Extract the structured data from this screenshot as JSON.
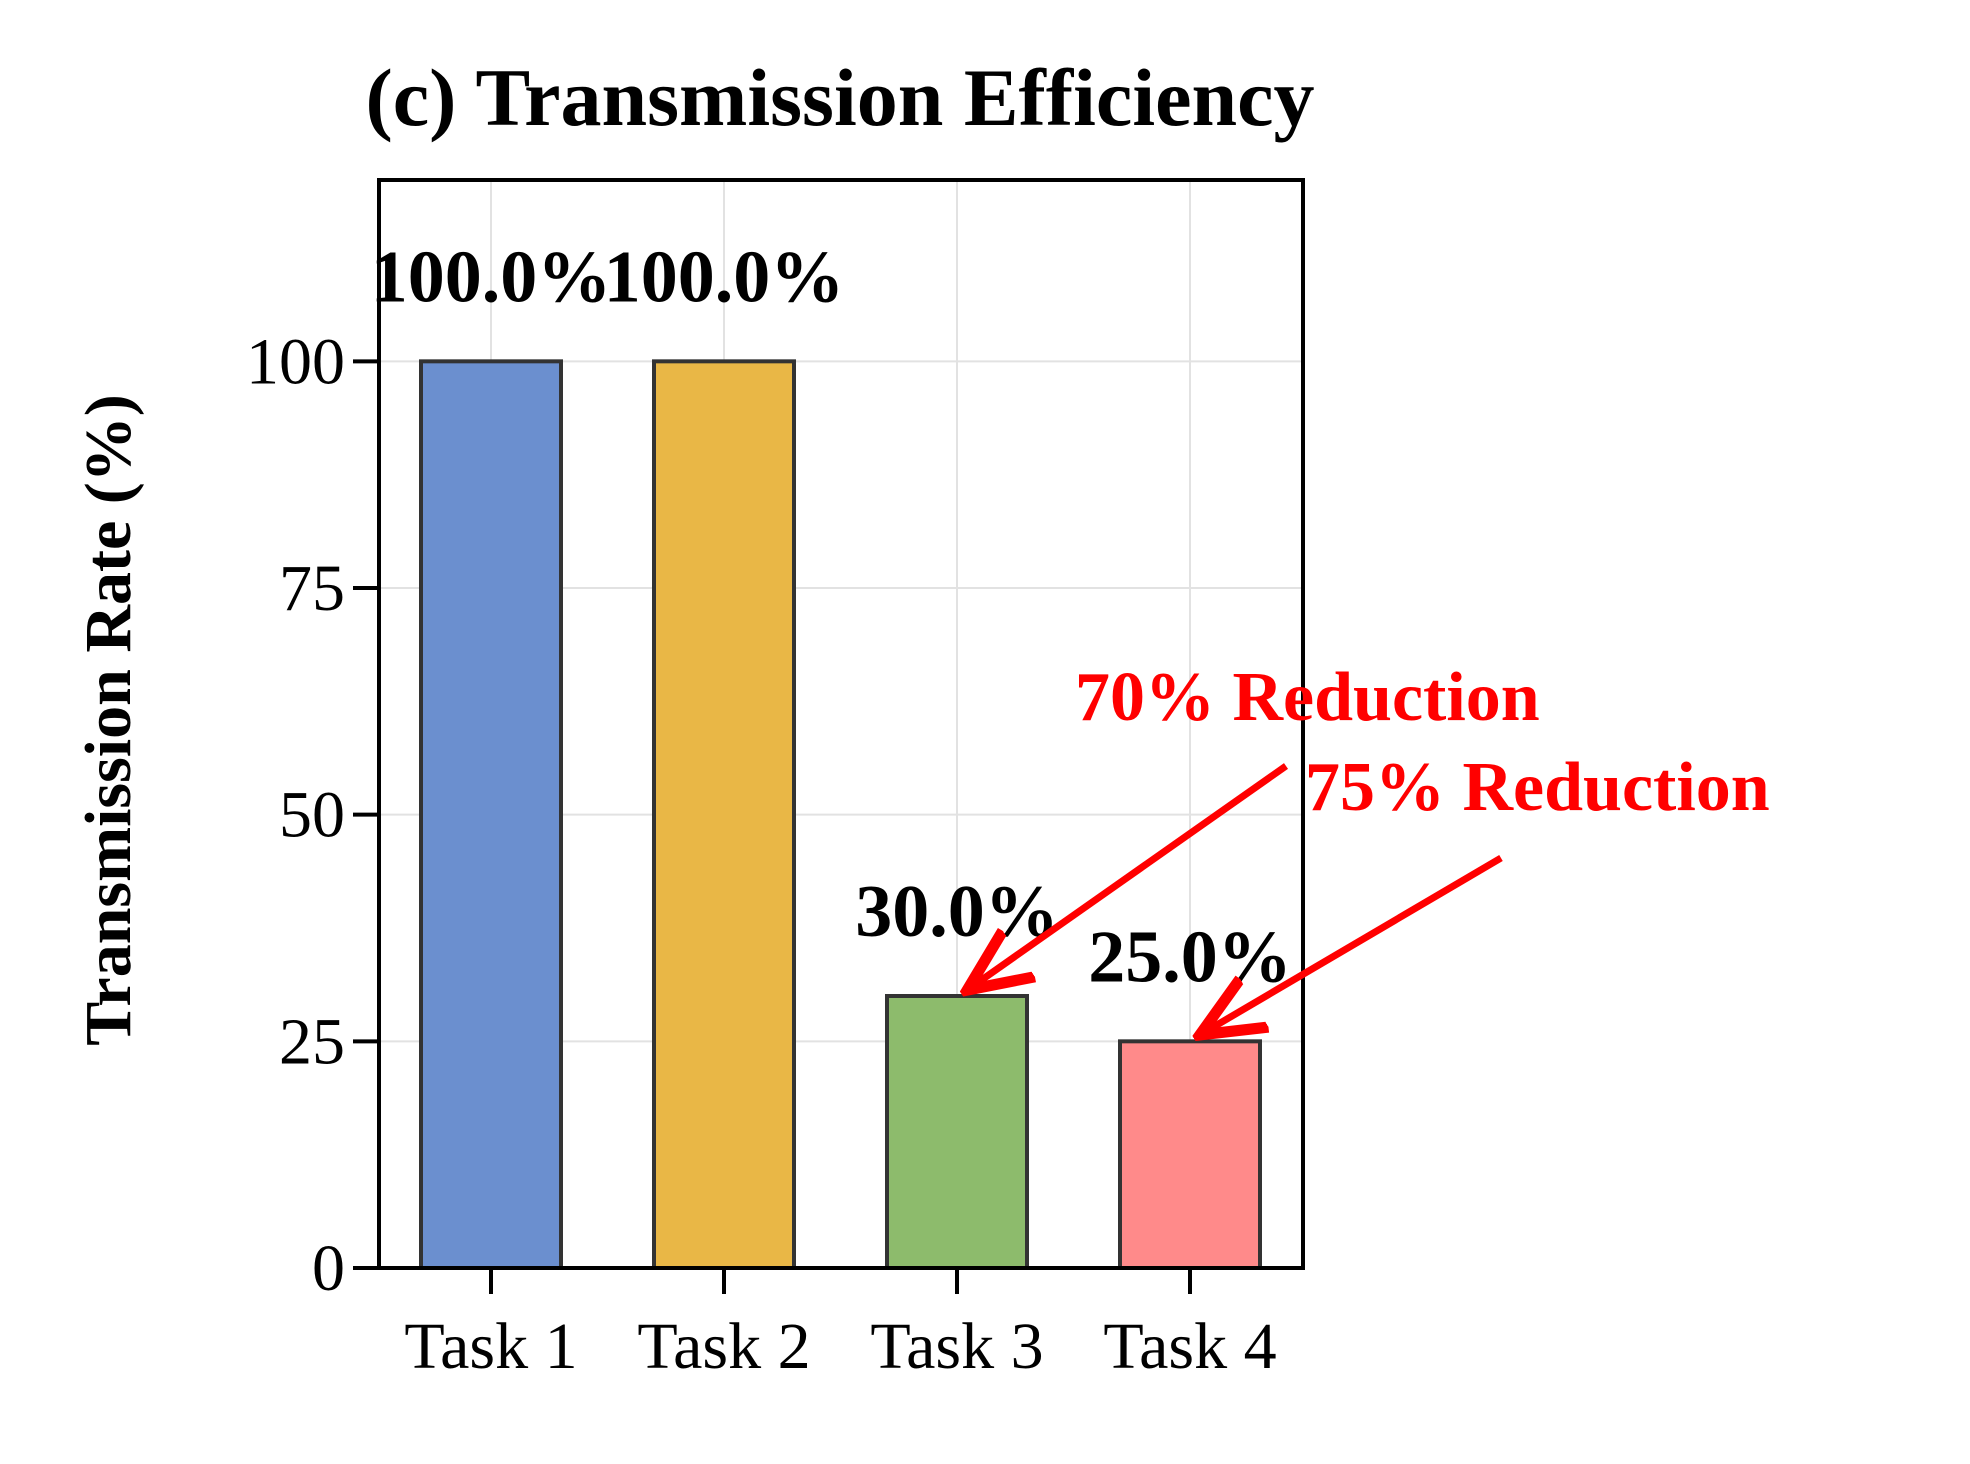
{
  "chart_data": {
    "type": "bar",
    "title": "(c) Transmission Efficiency",
    "xlabel": "",
    "ylabel": "Transmission Rate (%)",
    "categories": [
      "Task 1",
      "Task 2",
      "Task 3",
      "Task 4"
    ],
    "values": [
      100.0,
      100.0,
      30.0,
      25.0
    ],
    "data_labels": [
      "100.0%",
      "100.0%",
      "30.0%",
      "25.0%"
    ],
    "bar_colors": [
      "#6b8fcf",
      "#e9b746",
      "#8dbb6c",
      "#ff8a8a"
    ],
    "ylim": [
      0,
      120
    ],
    "yticks": [
      0,
      25,
      50,
      75,
      100
    ],
    "ytick_labels": [
      "0",
      "25",
      "50",
      "75",
      "100"
    ],
    "grid": true,
    "annotations": [
      {
        "text": "70% Reduction",
        "target_category": "Task 3",
        "target_value": 30.0,
        "color": "#ff0000"
      },
      {
        "text": "75% Reduction",
        "target_category": "Task 4",
        "target_value": 25.0,
        "color": "#ff0000"
      }
    ]
  }
}
